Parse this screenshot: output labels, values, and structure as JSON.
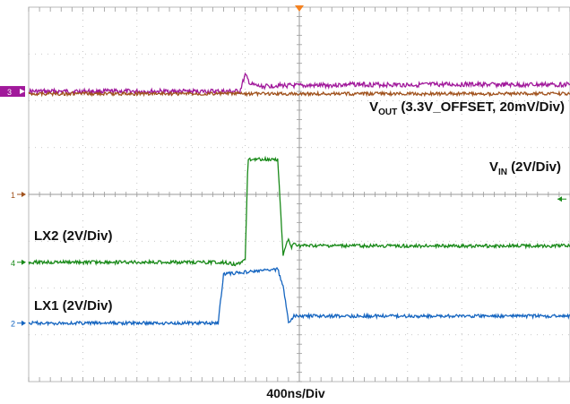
{
  "chart_data": {
    "type": "line",
    "title": "",
    "xlabel": "400ns/Div",
    "ylabel": "",
    "grid": true,
    "x_divisions": 10,
    "y_divisions": 8,
    "x_unit": "div",
    "y_unit": "div",
    "trigger_marker_color": "#f58220",
    "series": [
      {
        "name": "VOUT (3.3V_OFFSET, 20mV/Div)",
        "label_main": "V",
        "label_sub": "OUT",
        "label_rest": " (3.3V_OFFSET, 20mV/Div)",
        "channel_marker": "3",
        "color": "#a1199b",
        "x": [
          0,
          3.9,
          4.0,
          4.1,
          4.3,
          4.6,
          5.0,
          5.5,
          6.0,
          7.0,
          8.0,
          9.0,
          10.0
        ],
        "y": [
          6.2,
          6.2,
          6.55,
          6.35,
          6.3,
          6.33,
          6.32,
          6.33,
          6.35,
          6.34,
          6.35,
          6.34,
          6.35
        ]
      },
      {
        "name": "VIN (2V/Div)",
        "label_main": "V",
        "label_sub": "IN",
        "label_rest": " (2V/Div)",
        "channel_marker": "1",
        "color": "#a0521d",
        "x": [
          0,
          10.0
        ],
        "y": [
          6.15,
          6.15
        ]
      },
      {
        "name": "LX2 (2V/Div)",
        "label_main": "LX2 (2V/Div)",
        "label_sub": "",
        "label_rest": "",
        "channel_marker": "4",
        "color": "#1a8a1a",
        "x": [
          0,
          3.6,
          3.85,
          4.0,
          4.05,
          4.6,
          4.7,
          4.8,
          4.85,
          4.9,
          5.0,
          10.0
        ],
        "y": [
          2.55,
          2.55,
          2.5,
          2.6,
          4.75,
          4.75,
          2.7,
          3.05,
          2.85,
          2.95,
          2.9,
          2.9
        ]
      },
      {
        "name": "LX1 (2V/Div)",
        "label_main": "LX1 (2V/Div)",
        "label_sub": "",
        "label_rest": "",
        "channel_marker": "2",
        "color": "#1565c0",
        "x": [
          0,
          3.5,
          3.6,
          4.6,
          4.7,
          4.75,
          4.8,
          4.9,
          5.1,
          10.0
        ],
        "y": [
          1.25,
          1.25,
          2.3,
          2.4,
          2.05,
          1.65,
          1.25,
          1.4,
          1.4,
          1.4
        ]
      }
    ]
  }
}
